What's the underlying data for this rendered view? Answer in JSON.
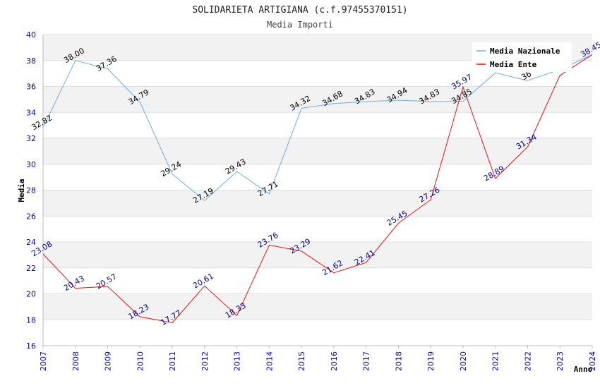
{
  "chart_data": {
    "type": "line",
    "title": "SOLIDARIETA ARTIGIANA (c.f.97455370151)",
    "subtitle": "Media Importi",
    "xlabel": "Anno",
    "ylabel": "Media",
    "ylim": [
      16,
      40
    ],
    "yticks": [
      "16",
      "18",
      "20",
      "22",
      "24",
      "26",
      "28",
      "30",
      "32",
      "34",
      "36",
      "38",
      "40"
    ],
    "categories": [
      "2007",
      "2008",
      "2009",
      "2010",
      "2011",
      "2012",
      "2013",
      "2014",
      "2015",
      "2016",
      "2017",
      "2018",
      "2019",
      "2020",
      "2021",
      "2022",
      "2023",
      "2024"
    ],
    "series": [
      {
        "name": "Media Nazionale",
        "color": "#6aaee6",
        "label_color": "#000000",
        "values": [
          32.82,
          38.0,
          37.36,
          34.79,
          29.24,
          27.19,
          29.43,
          27.71,
          34.32,
          34.68,
          34.83,
          34.94,
          34.83,
          34.85,
          37.05,
          36.45,
          37.3,
          38.45
        ],
        "labels": [
          "32.82",
          "38.00",
          "37.36",
          "34.79",
          "29.24",
          "27.19",
          "29.43",
          "27.71",
          "34.32",
          "34.68",
          "34.83",
          "34.94",
          "34.83",
          "34.85",
          "",
          "36",
          "",
          ""
        ]
      },
      {
        "name": "Media Ente",
        "color": "#ee1111",
        "label_color": "#000088",
        "values": [
          23.08,
          20.43,
          20.57,
          18.23,
          17.77,
          20.61,
          18.33,
          23.76,
          23.29,
          21.62,
          22.41,
          25.45,
          27.26,
          35.97,
          28.89,
          31.34,
          36.85,
          38.45
        ],
        "labels": [
          "23.08",
          "20.43",
          "20.57",
          "18.23",
          "17.77",
          "20.61",
          "18.33",
          "23.76",
          "23.29",
          "21.62",
          "22.41",
          "25.45",
          "27.26",
          "35.97",
          "28.89",
          "31.34",
          "",
          "38.45"
        ]
      }
    ],
    "legend": {
      "position": "top-right"
    },
    "grid": true
  }
}
